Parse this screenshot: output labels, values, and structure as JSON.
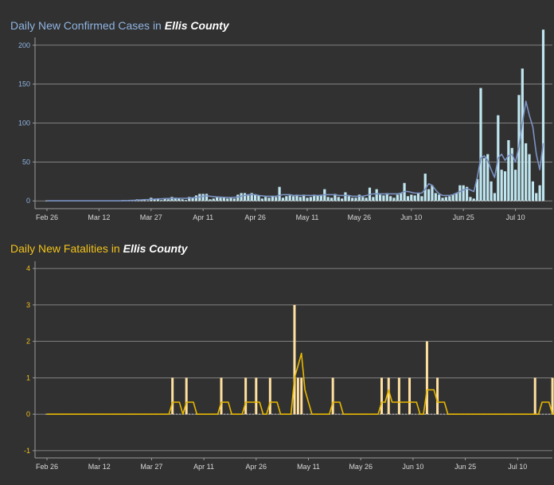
{
  "chart_data": [
    {
      "type": "bar",
      "title_prefix": "Daily New Confirmed Cases in ",
      "title_county": "Ellis County",
      "colors": {
        "title": "#8fb3e0",
        "bar": "#bfe6f0",
        "line": "#7b93c4",
        "axis_text": "#8fb3e0"
      },
      "ylim": [
        -10,
        210
      ],
      "y_ticks": [
        0,
        50,
        100,
        150,
        200
      ],
      "x_ticks": [
        "Feb 26",
        "Mar 12",
        "Mar 27",
        "Apr 11",
        "Apr 26",
        "May 11",
        "May 26",
        "Jun 10",
        "Jun 25",
        "Jul 10"
      ],
      "x_start": "Feb 26",
      "grid": true,
      "series": [
        {
          "kind": "bar",
          "values": [
            0,
            0,
            0,
            0,
            0,
            0,
            0,
            0,
            0,
            0,
            0,
            0,
            0,
            0,
            0,
            0,
            0,
            0,
            0,
            0,
            0,
            0,
            1,
            0,
            1,
            0,
            2,
            1,
            2,
            0,
            4,
            2,
            3,
            1,
            3,
            2,
            5,
            4,
            3,
            2,
            1,
            5,
            4,
            7,
            9,
            9,
            9,
            2,
            3,
            5,
            4,
            5,
            3,
            4,
            3,
            8,
            10,
            10,
            7,
            10,
            8,
            7,
            3,
            5,
            4,
            6,
            5,
            18,
            4,
            6,
            7,
            6,
            8,
            5,
            8,
            4,
            5,
            8,
            7,
            8,
            15,
            5,
            4,
            9,
            5,
            3,
            11,
            6,
            4,
            4,
            8,
            5,
            4,
            17,
            5,
            15,
            8,
            7,
            10,
            6,
            4,
            8,
            10,
            23,
            6,
            8,
            7,
            10,
            6,
            35,
            15,
            20,
            10,
            8,
            4,
            5,
            6,
            8,
            10,
            20,
            20,
            18,
            5,
            3,
            28,
            145,
            55,
            60,
            25,
            10,
            110,
            40,
            38,
            78,
            68,
            40,
            136,
            170,
            74,
            60,
            25,
            10,
            20,
            220
          ]
        },
        {
          "kind": "line",
          "values": [
            0,
            0,
            0,
            0,
            0,
            0,
            0,
            0,
            0,
            0,
            0,
            0,
            0,
            0,
            0,
            0,
            0,
            0,
            0,
            0,
            0,
            0,
            0.3,
            0.3,
            0.5,
            0.7,
            1,
            1.3,
            1.6,
            1.6,
            2,
            2.3,
            2.6,
            2.6,
            3,
            3,
            3.3,
            3.3,
            3.3,
            3.3,
            3.3,
            3.6,
            4,
            4.3,
            5,
            6,
            6.5,
            6,
            5.5,
            5,
            4.8,
            4.5,
            4.4,
            4.3,
            4.5,
            5,
            6,
            7,
            8,
            8,
            8,
            7,
            6.5,
            6,
            6,
            6,
            6,
            7,
            8,
            8,
            8,
            7,
            7,
            7,
            7,
            7,
            7,
            7,
            7,
            7,
            8,
            8,
            8,
            8,
            7,
            7,
            7,
            7,
            6,
            6,
            6,
            6,
            7,
            8,
            9,
            9,
            9,
            9,
            9,
            9,
            9,
            9,
            10,
            12,
            12,
            11,
            10,
            10,
            10,
            15,
            22,
            20,
            14,
            9,
            7,
            7,
            7,
            8,
            10,
            12,
            14,
            16,
            14,
            12,
            30,
            55,
            58,
            52,
            40,
            30,
            55,
            60,
            52,
            58,
            60,
            50,
            70,
            100,
            128,
            110,
            95,
            60,
            40,
            74
          ]
        }
      ]
    },
    {
      "type": "bar",
      "title_prefix": "Daily New Fatalities in ",
      "title_county": "Ellis County",
      "colors": {
        "title": "#f2c21b",
        "bar": "#ffe0a0",
        "line": "#e8b800",
        "axis_text": "#f2c21b"
      },
      "ylim": [
        -1.2,
        4.2
      ],
      "y_ticks": [
        -1,
        0,
        1,
        2,
        3,
        4
      ],
      "x_ticks": [
        "Feb 26",
        "Mar 12",
        "Mar 27",
        "Apr 11",
        "Apr 26",
        "May 11",
        "May 26",
        "Jun 10",
        "Jun 25",
        "Jul 10"
      ],
      "x_start": "Feb 26",
      "grid": true,
      "series": [
        {
          "kind": "bar",
          "values": [
            0,
            0,
            0,
            0,
            0,
            0,
            0,
            0,
            0,
            0,
            0,
            0,
            0,
            0,
            0,
            0,
            0,
            0,
            0,
            0,
            0,
            0,
            0,
            0,
            0,
            0,
            0,
            0,
            0,
            0,
            0,
            0,
            0,
            0,
            0,
            0,
            1,
            0,
            0,
            0,
            1,
            0,
            0,
            0,
            0,
            0,
            0,
            0,
            0,
            0,
            1,
            0,
            0,
            0,
            0,
            0,
            0,
            1,
            0,
            0,
            1,
            0,
            0,
            0,
            1,
            0,
            0,
            0,
            0,
            0,
            0,
            3,
            1,
            1,
            0,
            0,
            0,
            0,
            0,
            0,
            0,
            0,
            1,
            0,
            0,
            0,
            0,
            0,
            0,
            0,
            0,
            0,
            0,
            0,
            0,
            0,
            1,
            0,
            1,
            0,
            0,
            1,
            0,
            0,
            1,
            0,
            0,
            0,
            0,
            2,
            0,
            0,
            1,
            0,
            0,
            0,
            0,
            0,
            0,
            0,
            0,
            0,
            0,
            0,
            0,
            0,
            0,
            0,
            0,
            0,
            0,
            0,
            0,
            0,
            0,
            0,
            0,
            0,
            0,
            0,
            1,
            0,
            0,
            0,
            0,
            1
          ]
        },
        {
          "kind": "line",
          "values": [
            0,
            0,
            0,
            0,
            0,
            0,
            0,
            0,
            0,
            0,
            0,
            0,
            0,
            0,
            0,
            0,
            0,
            0,
            0,
            0,
            0,
            0,
            0,
            0,
            0,
            0,
            0,
            0,
            0,
            0,
            0,
            0,
            0,
            0,
            0,
            0,
            0.33,
            0.33,
            0.33,
            0,
            0.33,
            0.33,
            0.33,
            0,
            0,
            0,
            0,
            0,
            0,
            0,
            0.33,
            0.33,
            0.33,
            0,
            0,
            0,
            0,
            0.33,
            0.33,
            0.33,
            0.33,
            0.33,
            0,
            0,
            0.33,
            0.33,
            0.33,
            0,
            0,
            0,
            0,
            1,
            1.33,
            1.67,
            0.67,
            0.33,
            0,
            0,
            0,
            0,
            0,
            0,
            0.33,
            0.33,
            0.33,
            0,
            0,
            0,
            0,
            0,
            0,
            0,
            0,
            0,
            0,
            0,
            0.33,
            0.33,
            0.67,
            0.33,
            0.33,
            0.33,
            0.33,
            0.33,
            0.33,
            0.33,
            0.33,
            0,
            0,
            0.67,
            0.67,
            0.67,
            0.33,
            0.33,
            0.33,
            0,
            0,
            0,
            0,
            0,
            0,
            0,
            0,
            0,
            0,
            0,
            0,
            0,
            0,
            0,
            0,
            0,
            0,
            0,
            0,
            0,
            0,
            0,
            0,
            0,
            0,
            0,
            0.33,
            0.33,
            0.33,
            0,
            0,
            0.33
          ]
        }
      ]
    }
  ]
}
